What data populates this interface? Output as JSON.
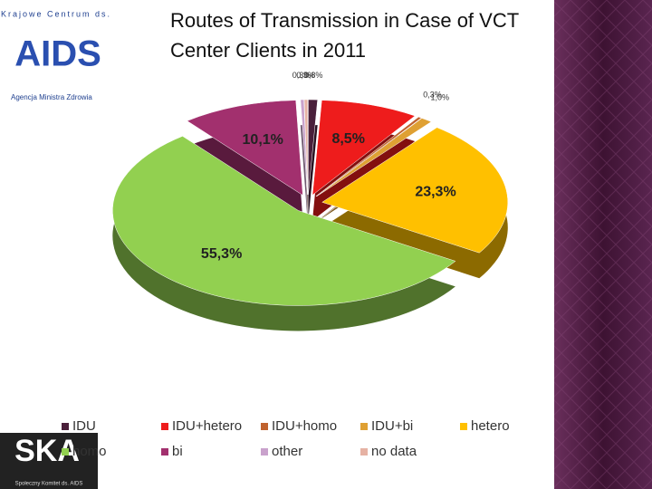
{
  "chart_data": {
    "type": "pie3d",
    "title": "Routes of Transmission in Case of VCT Center Clients in 2011",
    "categories": [
      "IDU",
      "IDU+hetero",
      "IDU+homo",
      "IDU+bi",
      "hetero",
      "homo",
      "bi",
      "other",
      "no data"
    ],
    "values": [
      0.8,
      8.5,
      0.3,
      1.0,
      23.3,
      55.3,
      10.1,
      0.3,
      0.3
    ],
    "value_labels": [
      "0,8%",
      "8,5%",
      "0,3%",
      "1,0%",
      "23,3%",
      "55,3%",
      "10,1%",
      "0,3%",
      "0,3%"
    ],
    "colors": [
      "#4a1f3a",
      "#ee1c1c",
      "#c0622e",
      "#dfa033",
      "#ffc000",
      "#92d050",
      "#a2306e",
      "#c9a2cc",
      "#e6b2a4"
    ],
    "legend": "bottom"
  },
  "logos": {
    "top_arc": "Krajowe Centrum ds.",
    "top_main": "AIDS",
    "top_sub": "Agencja Ministra Zdrowia",
    "bottom_main": "SKA",
    "bottom_sub": "Społeczny Komitet ds. AIDS"
  }
}
